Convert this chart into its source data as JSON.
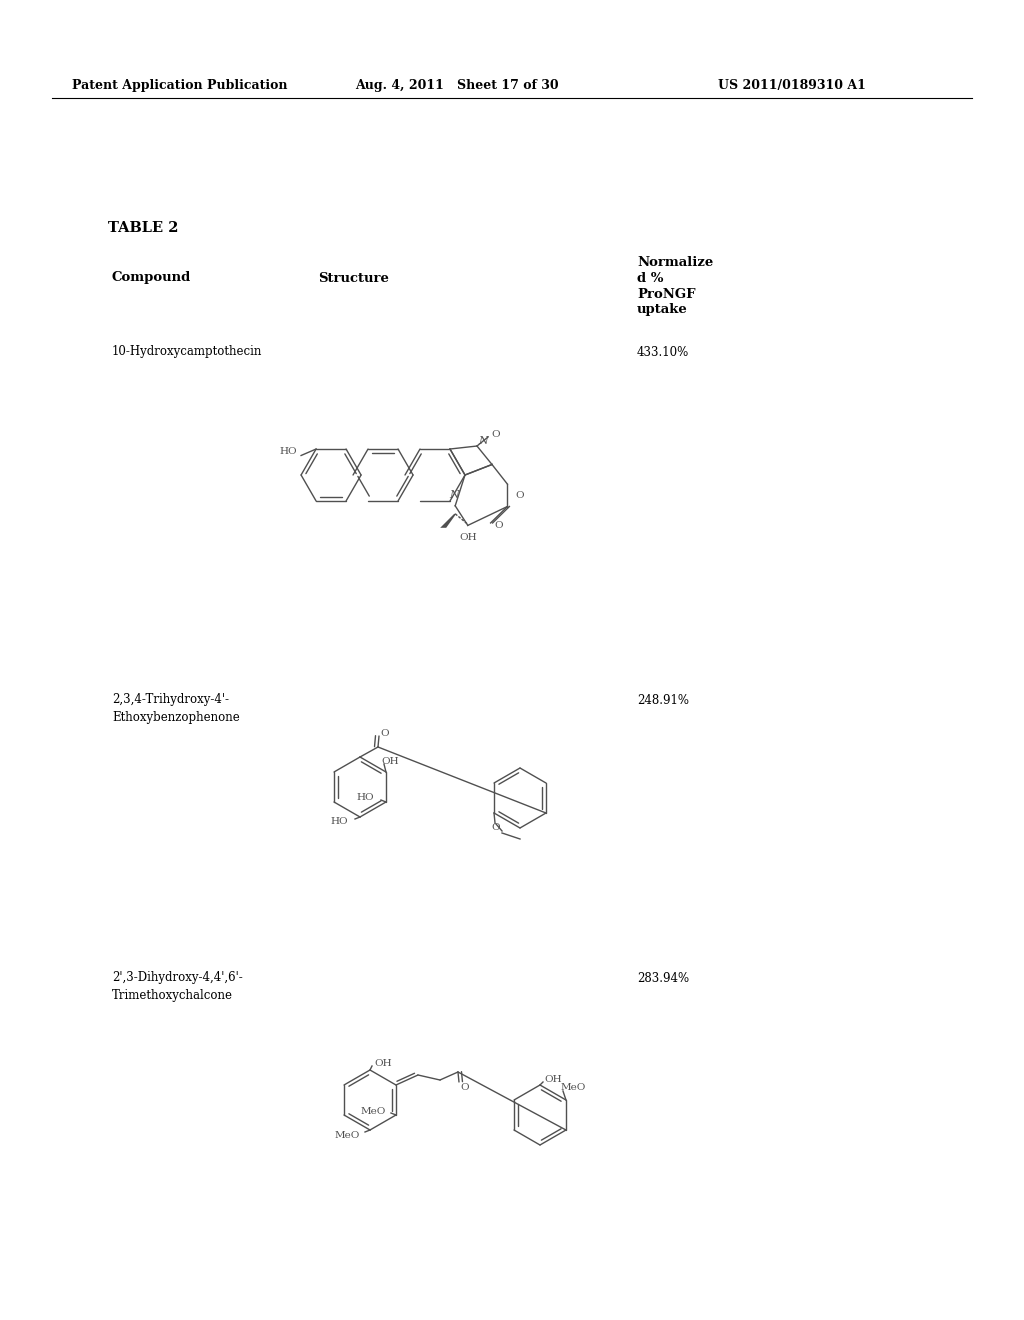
{
  "header_left": "Patent Application Publication",
  "header_mid": "Aug. 4, 2011   Sheet 17 of 30",
  "header_right": "US 2011/0189310 A1",
  "table_title": "TABLE 2",
  "col_compound": "Compound",
  "col_structure": "Structure",
  "col_value_line1": "Normalize",
  "col_value_line2": "d %",
  "col_value_line3": "ProNGF",
  "col_value_line4": "uptake",
  "row1_name": "10-Hydroxycamptothecin",
  "row1_value": "433.10%",
  "row2_name_line1": "2,3,4-Trihydroxy-4'-",
  "row2_name_line2": "Ethoxybenzophenone",
  "row2_value": "248.91%",
  "row3_name_line1": "2',3-Dihydroxy-4,4',6'-",
  "row3_name_line2": "Trimethoxychalcone",
  "row3_value": "283.94%",
  "bg_color": "#ffffff",
  "line_color": "#000000",
  "struct_color": "#505050",
  "header_fontsize": 9.0,
  "table_title_fontsize": 10.5,
  "col_header_fontsize": 9.5,
  "body_fontsize": 8.5,
  "struct_fontsize": 7.5,
  "struct_lw": 1.0
}
